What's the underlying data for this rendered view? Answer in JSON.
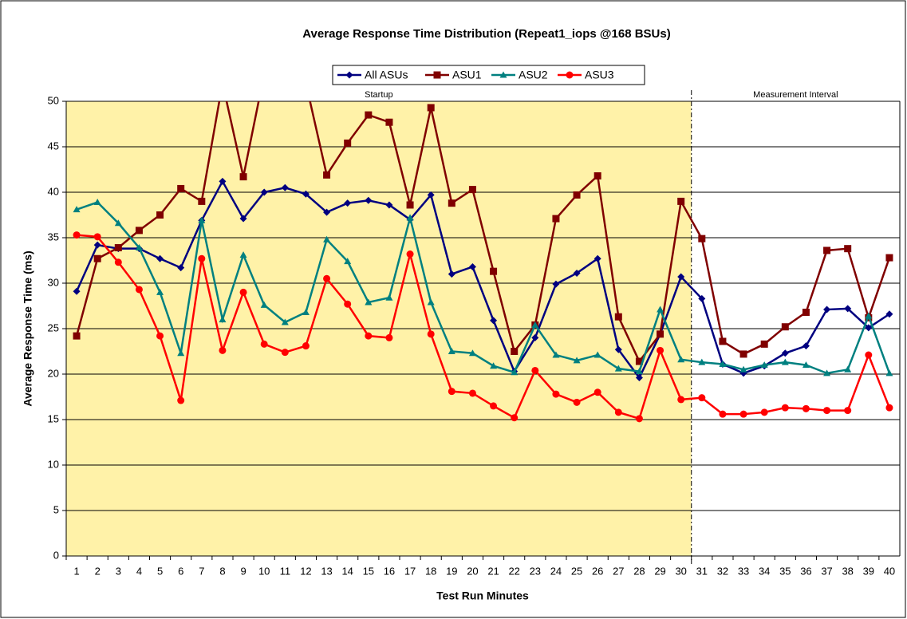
{
  "chart_data": {
    "type": "line",
    "title": "Average Response Time Distribution (Repeat1_iops @168 BSUs)",
    "x_label": "Test Run Minutes",
    "y_label": "Average Response Time (ms)",
    "categories": [
      "1",
      "2",
      "3",
      "4",
      "5",
      "6",
      "7",
      "8",
      "9",
      "10",
      "11",
      "12",
      "13",
      "14",
      "15",
      "16",
      "17",
      "18",
      "19",
      "20",
      "21",
      "22",
      "23",
      "24",
      "25",
      "26",
      "27",
      "28",
      "29",
      "30",
      "31",
      "32",
      "33",
      "34",
      "35",
      "36",
      "37",
      "38",
      "39",
      "40"
    ],
    "regions": [
      {
        "label": "Startup",
        "from": "1",
        "to": "30",
        "color": "#fff2a8"
      },
      {
        "label": "Measurement Interval",
        "from": "31",
        "to": "40",
        "color": "#ffffff"
      }
    ],
    "ylim": [
      0,
      50
    ],
    "yticks": [
      0,
      5,
      10,
      15,
      20,
      25,
      30,
      35,
      40,
      45,
      50
    ],
    "grid": true,
    "series": [
      {
        "name": "All ASUs",
        "color": "#000080",
        "marker": "diamond",
        "values": [
          29.1,
          34.2,
          33.8,
          33.8,
          32.7,
          31.7,
          36.9,
          41.2,
          37.1,
          40.0,
          40.5,
          39.8,
          37.8,
          38.8,
          39.1,
          38.6,
          37.0,
          39.7,
          31.0,
          31.8,
          25.9,
          20.3,
          24.0,
          29.9,
          31.1,
          32.7,
          22.7,
          19.6,
          24.4,
          30.7,
          28.3,
          21.1,
          20.1,
          20.9,
          22.3,
          23.1,
          27.1,
          27.2,
          25.1,
          26.6
        ]
      },
      {
        "name": "ASU1",
        "color": "#800000",
        "marker": "square",
        "values": [
          24.2,
          32.7,
          33.9,
          35.8,
          37.5,
          40.4,
          39.0,
          52,
          41.7,
          53,
          55,
          52,
          41.9,
          45.4,
          48.5,
          47.7,
          38.6,
          49.3,
          38.8,
          40.3,
          31.3,
          22.5,
          25.4,
          37.1,
          39.7,
          41.8,
          26.3,
          21.4,
          24.4,
          39.0,
          34.9,
          23.6,
          22.2,
          23.3,
          25.2,
          26.8,
          33.6,
          33.8,
          26.2,
          32.8
        ]
      },
      {
        "name": "ASU2",
        "color": "#008080",
        "marker": "triangle",
        "values": [
          38.1,
          38.9,
          36.6,
          33.9,
          29.0,
          22.3,
          36.9,
          26.0,
          33.1,
          27.6,
          25.7,
          26.8,
          34.8,
          32.4,
          27.9,
          28.4,
          37.2,
          27.9,
          22.5,
          22.3,
          20.9,
          20.2,
          25.4,
          22.1,
          21.5,
          22.1,
          20.6,
          20.3,
          27.1,
          21.6,
          21.3,
          21.1,
          20.5,
          21.0,
          21.3,
          21.0,
          20.1,
          20.5,
          26.4,
          20.1
        ]
      },
      {
        "name": "ASU3",
        "color": "#ff0000",
        "marker": "circle",
        "values": [
          35.3,
          35.1,
          32.3,
          29.3,
          24.2,
          17.1,
          32.7,
          22.6,
          29.0,
          23.3,
          22.4,
          23.1,
          30.5,
          27.7,
          24.2,
          24.0,
          33.2,
          24.4,
          18.1,
          17.9,
          16.5,
          15.2,
          20.4,
          17.8,
          16.9,
          18.0,
          15.8,
          15.1,
          22.6,
          17.2,
          17.4,
          15.6,
          15.6,
          15.8,
          16.3,
          16.2,
          16.0,
          16.0,
          22.1,
          16.3
        ]
      }
    ]
  }
}
